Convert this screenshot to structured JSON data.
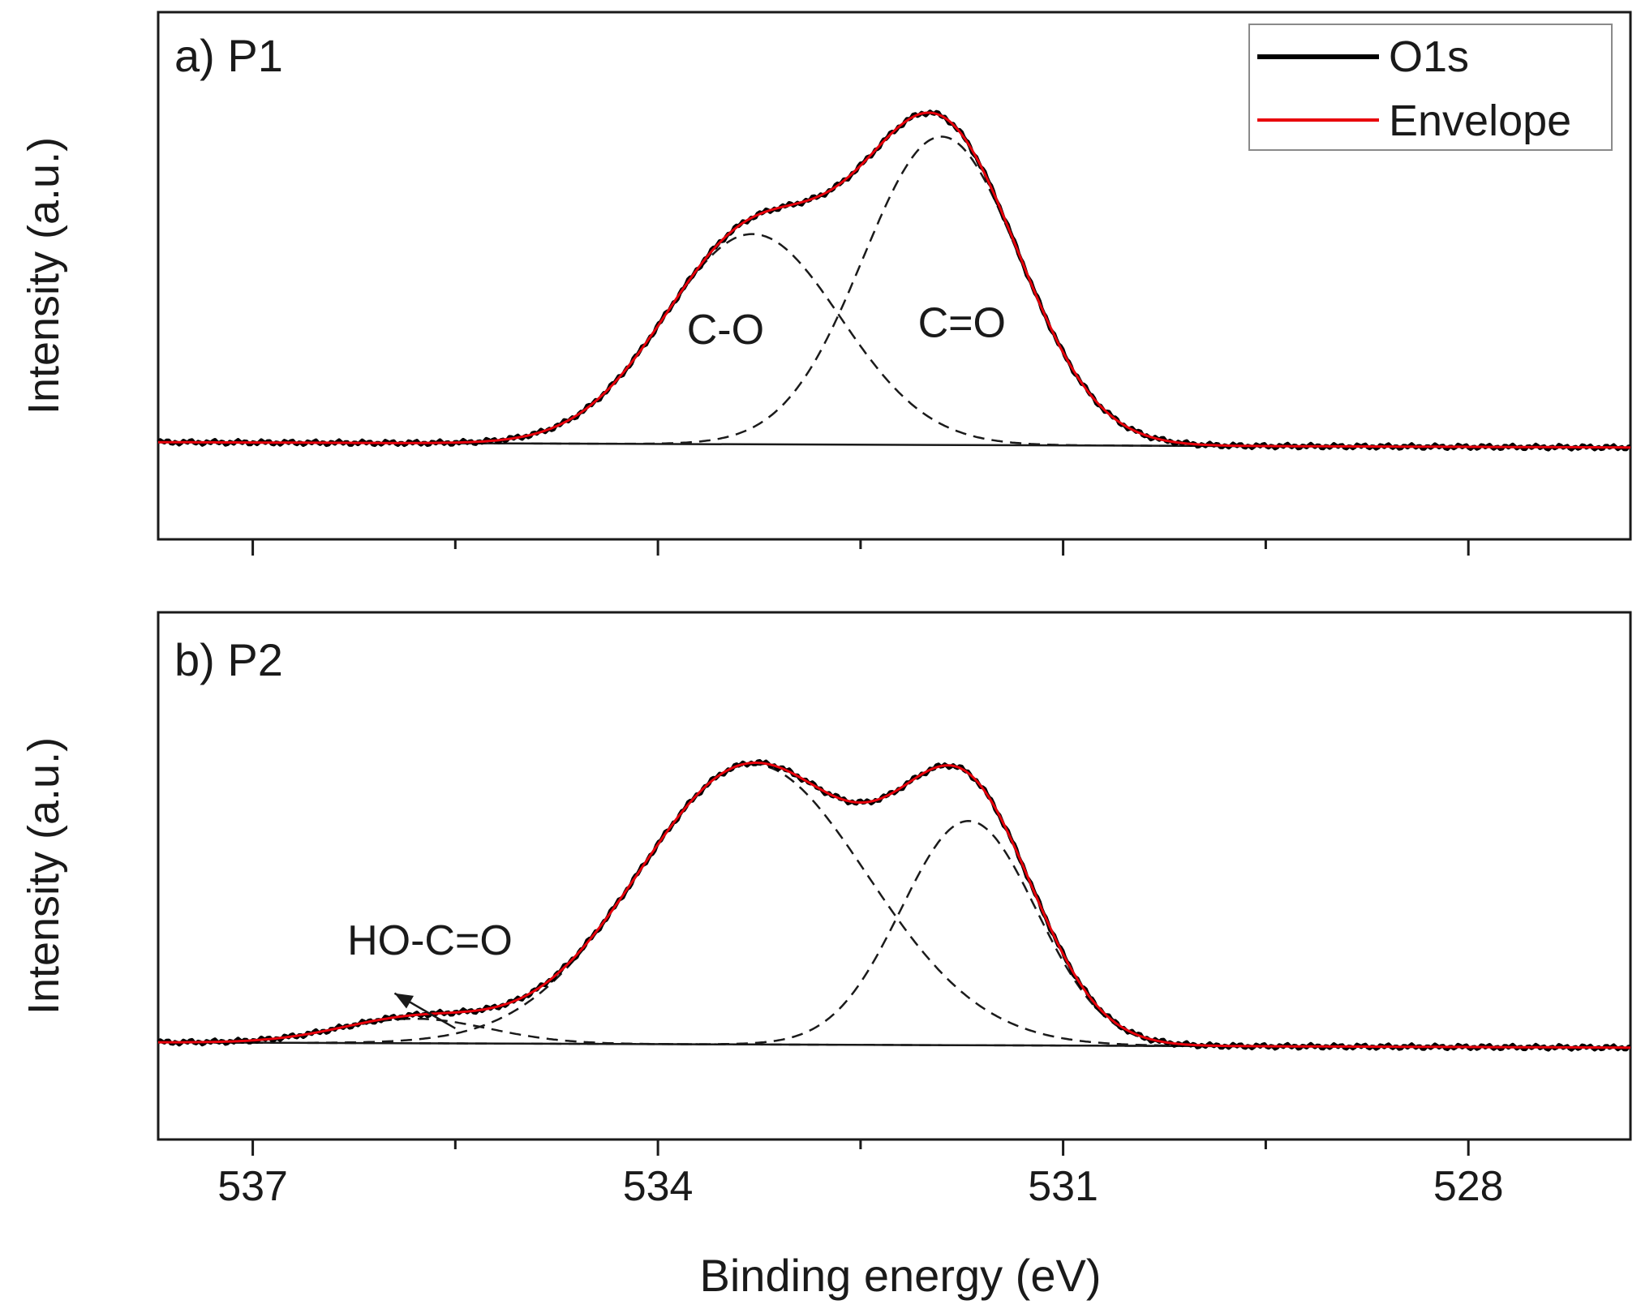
{
  "figure": {
    "x_axis_label": "Binding energy (eV)",
    "y_axis_label": "Intensity (a.u.)"
  },
  "legend": {
    "entries": [
      {
        "label": "O1s",
        "color": "#000000"
      },
      {
        "label": "Envelope",
        "color": "#e8000b"
      }
    ]
  },
  "chart_data": [
    {
      "type": "line",
      "panel_label": "a) P1",
      "xlabel": "Binding energy (eV)",
      "ylabel": "Intensity (a.u.)",
      "x_reversed": true,
      "xlim": [
        537.7,
        526.8
      ],
      "ylim": [
        -0.15,
        1.1
      ],
      "xticks": [
        537,
        534,
        531,
        528
      ],
      "xticks_minor": [
        535.5,
        532.5,
        529.5
      ],
      "show_tick_labels": false,
      "background": {
        "left": {
          "x": 537.7,
          "y": 0.0
        },
        "right": {
          "x": 526.8,
          "y": -0.015
        }
      },
      "components": [
        {
          "name": "C-O",
          "center": 533.3,
          "height": 0.6,
          "sigma": 0.65,
          "label": "C-O",
          "label_pos": {
            "x": 533.5,
            "y": 0.28
          }
        },
        {
          "name": "C=O",
          "center": 531.9,
          "height": 0.88,
          "sigma": 0.58,
          "label": "C=O",
          "label_pos": {
            "x": 531.75,
            "y": 0.3
          }
        }
      ],
      "series": [
        {
          "name": "O1s",
          "color": "#000000",
          "style": "solid"
        },
        {
          "name": "Envelope",
          "color": "#e8000b",
          "style": "solid"
        }
      ],
      "legend": "top-right"
    },
    {
      "type": "line",
      "panel_label": "b) P2",
      "xlabel": "Binding energy (eV)",
      "ylabel": "Intensity (a.u.)",
      "x_reversed": true,
      "xlim": [
        537.7,
        526.8
      ],
      "ylim": [
        -0.15,
        1.1
      ],
      "xticks": [
        537,
        534,
        531,
        528
      ],
      "xticks_minor": [
        535.5,
        532.5,
        529.5
      ],
      "xtick_labels": [
        "537",
        "534",
        "531",
        "528"
      ],
      "show_tick_labels": true,
      "background": {
        "left": {
          "x": 537.7,
          "y": 0.0
        },
        "right": {
          "x": 526.8,
          "y": -0.015
        }
      },
      "components": [
        {
          "name": "C-O",
          "center": 533.3,
          "height": 0.8,
          "sigma": 0.85
        },
        {
          "name": "C=O",
          "center": 531.7,
          "height": 0.64,
          "sigma": 0.5
        },
        {
          "name": "HO-C=O",
          "center": 535.8,
          "height": 0.07,
          "sigma": 0.55
        }
      ],
      "annotation": {
        "text": "HO-C=O",
        "text_pos": {
          "x": 536.3,
          "y": 0.25
        },
        "arrow_from": {
          "x": 535.5,
          "y": 0.04
        },
        "arrow_to": {
          "x": 535.95,
          "y": 0.14
        }
      },
      "series": [
        {
          "name": "O1s",
          "color": "#000000",
          "style": "solid"
        },
        {
          "name": "Envelope",
          "color": "#e8000b",
          "style": "solid"
        }
      ]
    }
  ]
}
